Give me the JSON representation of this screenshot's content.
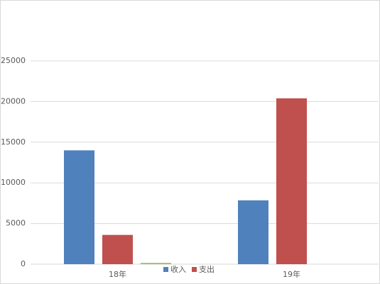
{
  "chart_data": {
    "type": "bar",
    "categories": [
      "18年",
      "19年"
    ],
    "series": [
      {
        "name": "收入",
        "color": "#4f81bd",
        "values": [
          14000,
          7850
        ]
      },
      {
        "name": "支出",
        "color": "#c0504d",
        "values": [
          3600,
          20400
        ]
      },
      {
        "color": "#9bbb59",
        "values": [
          150,
          0
        ]
      }
    ],
    "ylim": [
      0,
      25000
    ],
    "yticks": [
      0,
      5000,
      10000,
      15000,
      20000,
      25000
    ],
    "grid": true,
    "legend": "bottom"
  }
}
